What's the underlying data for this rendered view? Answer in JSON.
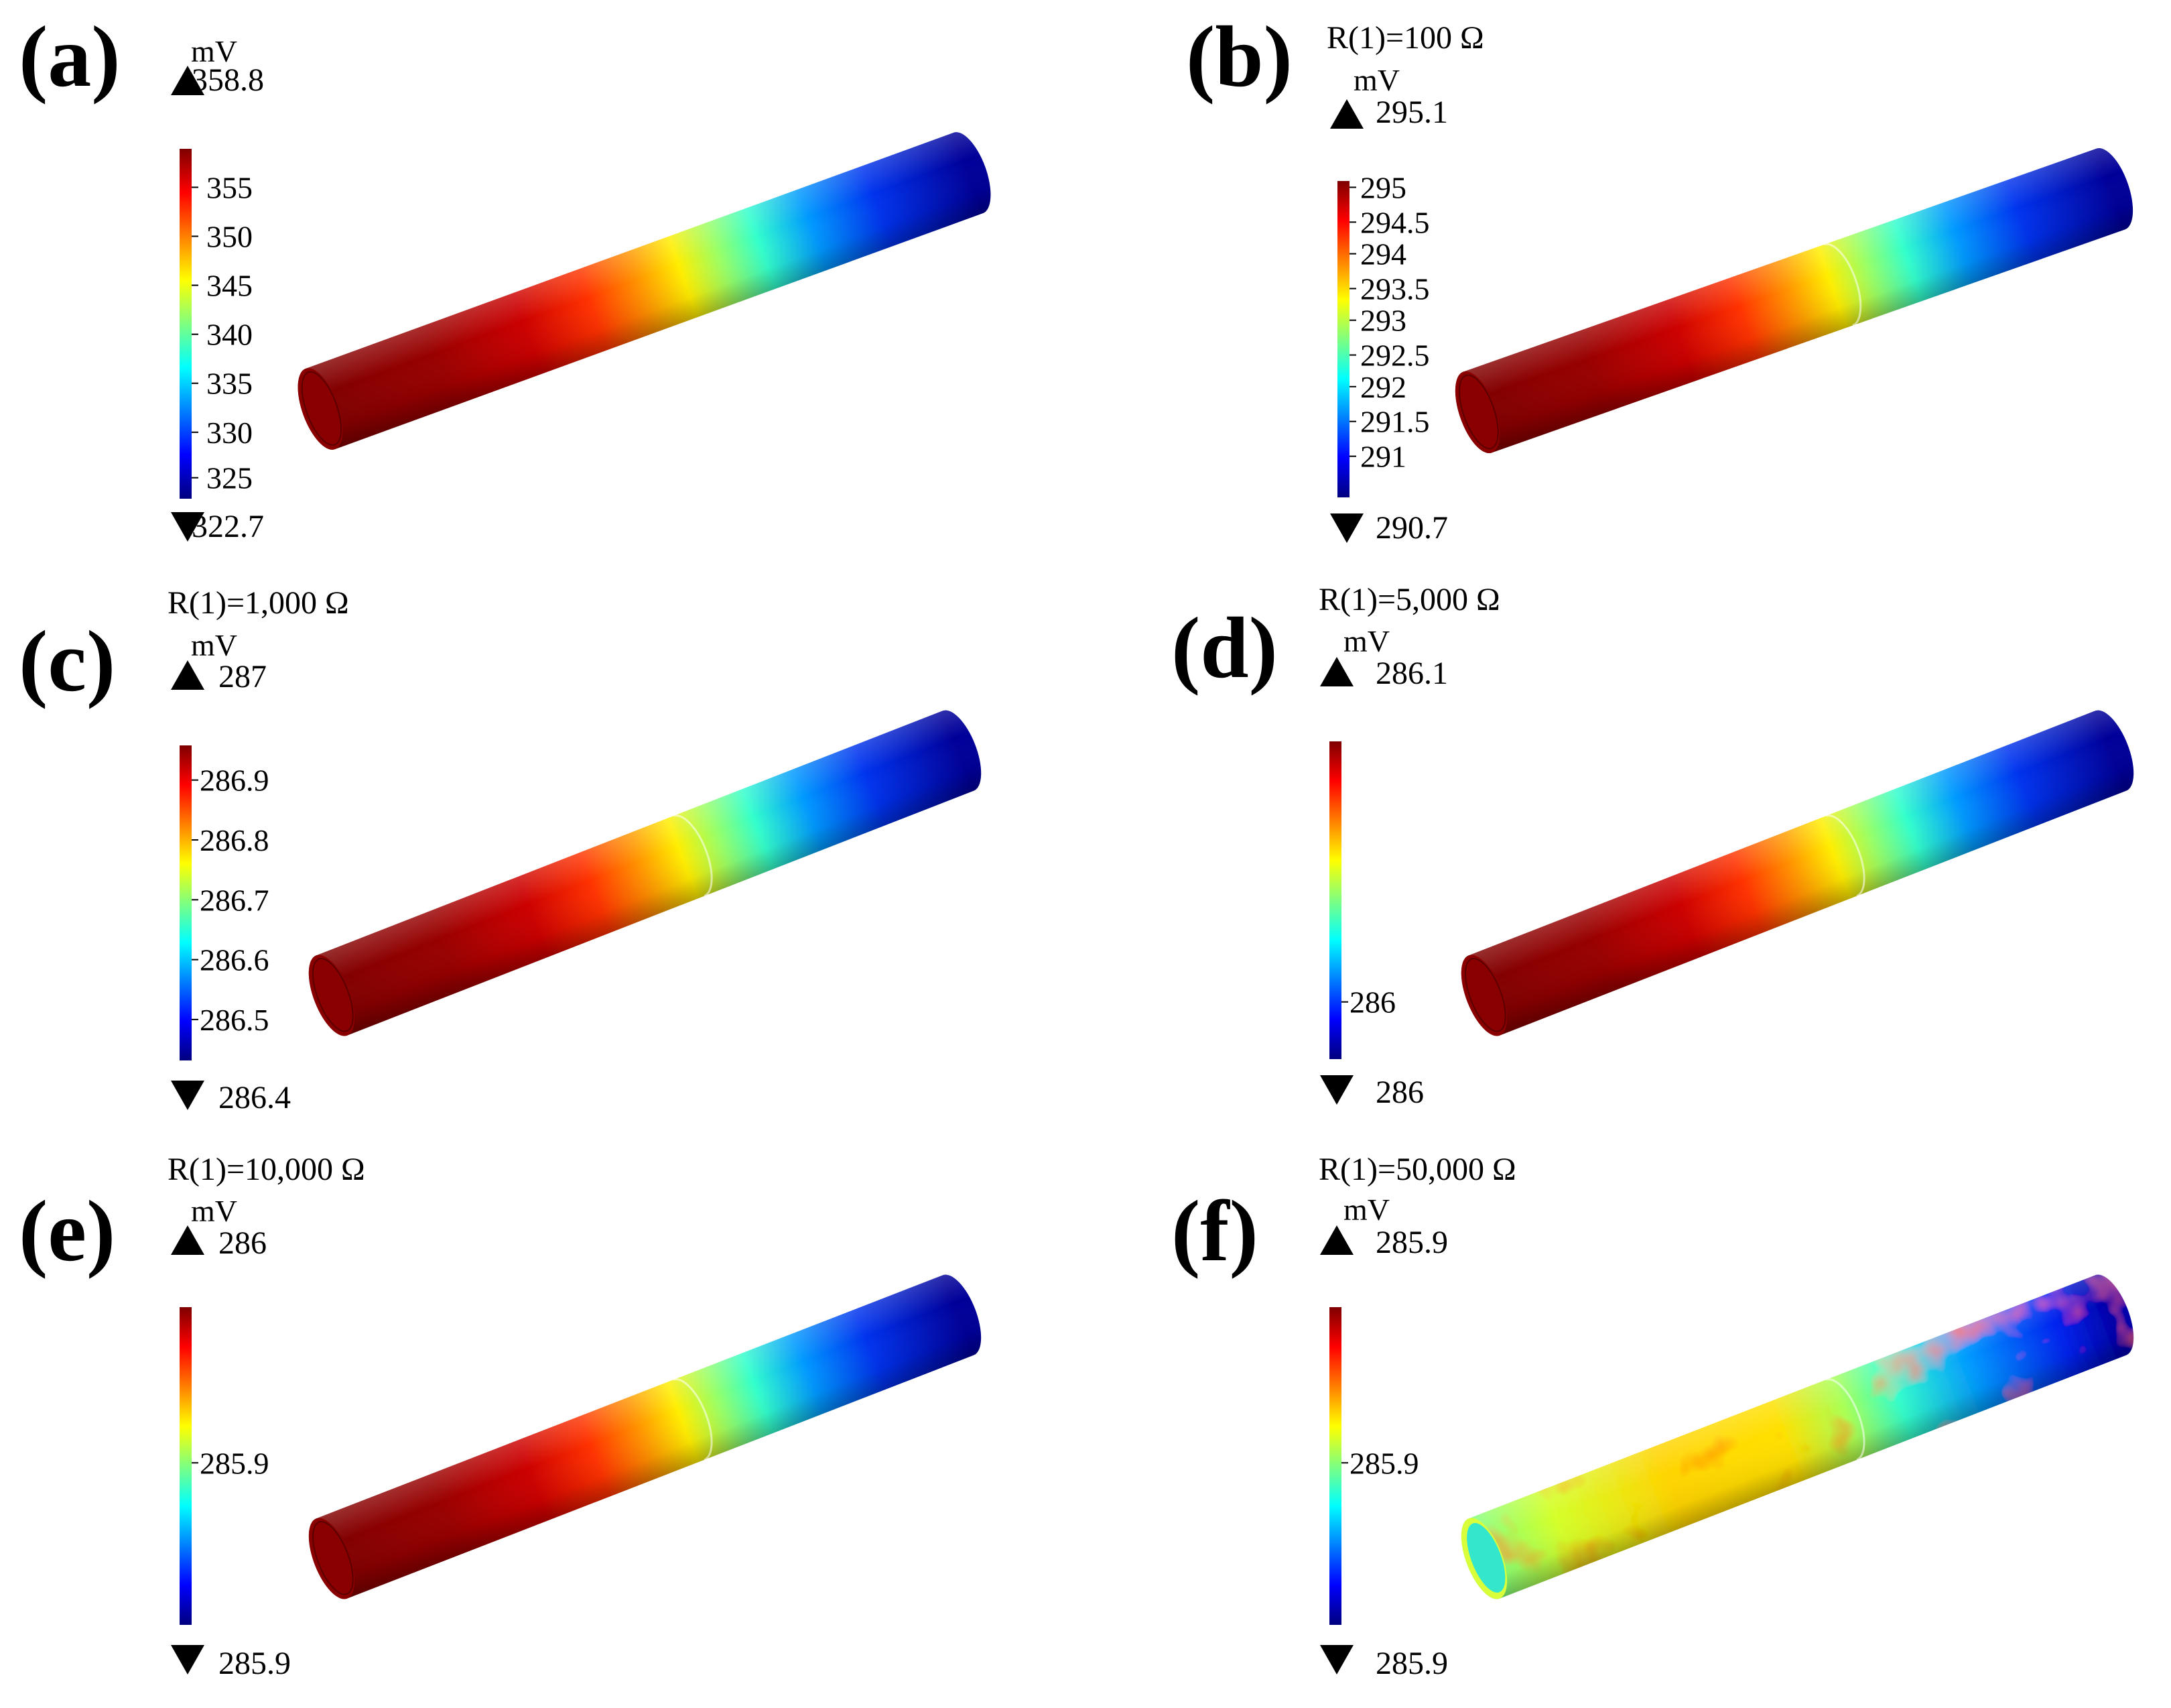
{
  "colors": {
    "jet": [
      "#00007f",
      "#0000ff",
      "#007fff",
      "#00ffff",
      "#7fff7f",
      "#ffff00",
      "#ff7f00",
      "#ff0000",
      "#7f0000"
    ]
  },
  "panels": [
    {
      "id": "a",
      "letter": "(a)",
      "caption": "",
      "unit": "mV",
      "max_label": "358.8",
      "min_label": "322.7",
      "ticks": [
        {
          "label": "355",
          "level": 0.89
        },
        {
          "label": "350",
          "level": 0.75
        },
        {
          "label": "345",
          "level": 0.61
        },
        {
          "label": "340",
          "level": 0.47
        },
        {
          "label": "335",
          "level": 0.33
        },
        {
          "label": "330",
          "level": 0.19
        },
        {
          "label": "325",
          "level": 0.06
        }
      ],
      "rod": {
        "style": "solid",
        "band": false
      }
    },
    {
      "id": "b",
      "letter": "(b)",
      "caption": "R(1)=100 Ω",
      "unit": "mV",
      "max_label": "295.1",
      "min_label": "290.7",
      "ticks": [
        {
          "label": "295",
          "level": 0.98
        },
        {
          "label": "294.5",
          "level": 0.87
        },
        {
          "label": "294",
          "level": 0.77
        },
        {
          "label": "293.5",
          "level": 0.66
        },
        {
          "label": "293",
          "level": 0.56
        },
        {
          "label": "292.5",
          "level": 0.45
        },
        {
          "label": "292",
          "level": 0.35
        },
        {
          "label": "291.5",
          "level": 0.24
        },
        {
          "label": "291",
          "level": 0.13
        }
      ],
      "rod": {
        "style": "solid",
        "band": true
      }
    },
    {
      "id": "c",
      "letter": "(c)",
      "caption": "R(1)=1,000 Ω",
      "unit": "mV",
      "max_label": "287",
      "min_label": "286.4",
      "ticks": [
        {
          "label": "286.9",
          "level": 0.89
        },
        {
          "label": "286.8",
          "level": 0.7
        },
        {
          "label": "286.7",
          "level": 0.51
        },
        {
          "label": "286.6",
          "level": 0.32
        },
        {
          "label": "286.5",
          "level": 0.13
        }
      ],
      "rod": {
        "style": "solid",
        "band": true
      }
    },
    {
      "id": "d",
      "letter": "(d)",
      "caption": "R(1)=5,000 Ω",
      "unit": "mV",
      "max_label": "286.1",
      "min_label": "286",
      "ticks": [
        {
          "label": "286",
          "level": 0.18
        }
      ],
      "rod": {
        "style": "solid",
        "band": true
      }
    },
    {
      "id": "e",
      "letter": "(e)",
      "caption": "R(1)=10,000 Ω",
      "unit": "mV",
      "max_label": "286",
      "min_label": "285.9",
      "ticks": [
        {
          "label": "285.9",
          "level": 0.51
        }
      ],
      "rod": {
        "style": "solid",
        "band": true
      }
    },
    {
      "id": "f",
      "letter": "(f)",
      "caption": "R(1)=50,000 Ω",
      "unit": "mV",
      "max_label": "285.9",
      "min_label": "285.9",
      "ticks": [
        {
          "label": "285.9",
          "level": 0.51
        }
      ],
      "rod": {
        "style": "mottled",
        "band": true
      }
    }
  ]
}
